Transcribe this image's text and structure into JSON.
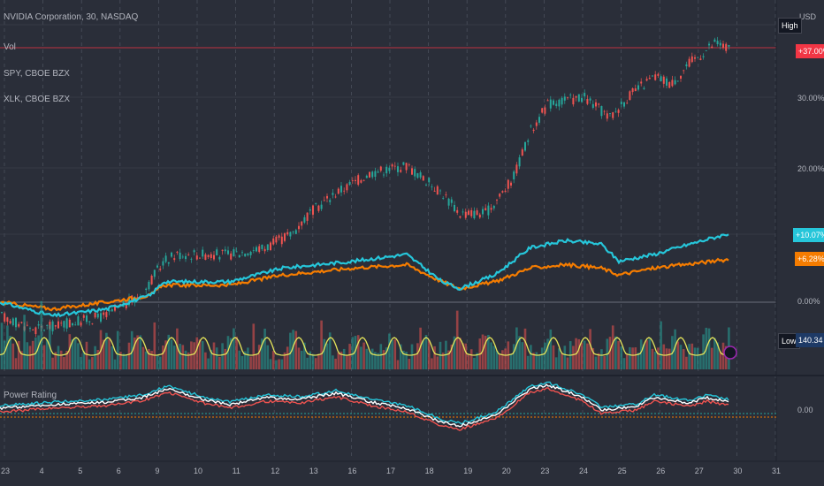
{
  "chart_data": {
    "type": "line",
    "main_legend": {
      "symbol_line": "NVIDIA Corporation, 30, NASDAQ",
      "indicators": [
        "Vol",
        "SPY, CBOE BZX",
        "XLK, CBOE BZX"
      ]
    },
    "currency_label": "USD",
    "y_axis_ticks": [
      "30.00%",
      "20.00%",
      "0.00%"
    ],
    "y_axis_tick_values": [
      30,
      20,
      0
    ],
    "price_tags": {
      "high": {
        "label": "High"
      },
      "nvda": {
        "label": "+37.00%",
        "value": 37.0,
        "color": "#f23645"
      },
      "spy": {
        "label": "+10.07%",
        "value": 10.07,
        "color": "#26c6da"
      },
      "xlk": {
        "label": "+6.28%",
        "value": 6.28,
        "color": "#f57c00"
      },
      "low": {
        "label": "Low",
        "value_label": "140.34"
      }
    },
    "x_axis_labels": [
      "23",
      "4",
      "5",
      "6",
      "9",
      "10",
      "11",
      "12",
      "13",
      "16",
      "17",
      "18",
      "19",
      "20",
      "23",
      "24",
      "25",
      "26",
      "27",
      "30",
      "31"
    ],
    "series": [
      {
        "name": "SPY, CBOE BZX",
        "color": "#26c6da",
        "final": 10.07
      },
      {
        "name": "XLK, CBOE BZX",
        "color": "#f57c00",
        "final": 6.28
      }
    ],
    "lower_pane": {
      "title": "Power Rating",
      "tick": "0.00"
    },
    "colors": {
      "up": "#26a69a",
      "down": "#ef5350",
      "spy": "#26c6da",
      "xlk": "#f57c00",
      "volume_ma": "#e5e55a"
    }
  }
}
